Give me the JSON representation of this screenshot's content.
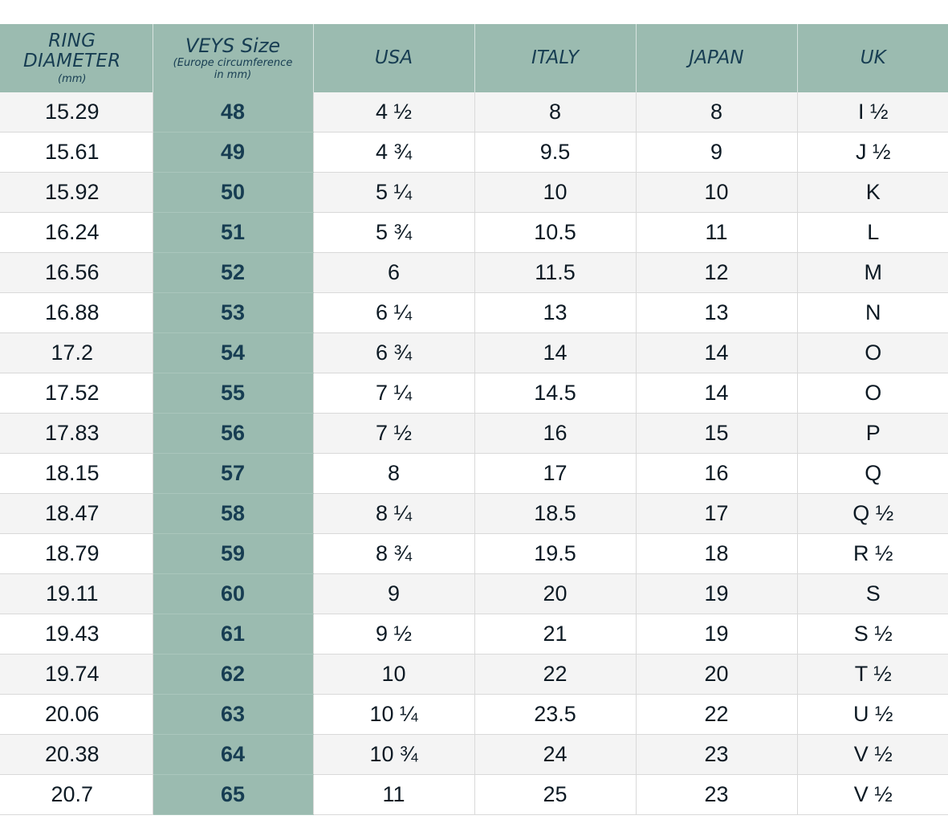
{
  "header": {
    "ring_diameter": {
      "line1": "RING",
      "line2": "DIAMETER",
      "unit": "(mm)"
    },
    "veys": {
      "title": "VEYS Size",
      "sub1": "(Europe circumference",
      "sub2": "in mm)"
    },
    "usa": "USA",
    "italy": "ITALY",
    "japan": "JAPAN",
    "uk": "UK"
  },
  "rows": [
    {
      "diameter": "15.29",
      "veys": "48",
      "usa": "4 ½",
      "italy": "8",
      "japan": "8",
      "uk": "I ½"
    },
    {
      "diameter": "15.61",
      "veys": "49",
      "usa": "4 ¾",
      "italy": "9.5",
      "japan": "9",
      "uk": "J ½"
    },
    {
      "diameter": "15.92",
      "veys": "50",
      "usa": "5 ¼",
      "italy": "10",
      "japan": "10",
      "uk": "K"
    },
    {
      "diameter": "16.24",
      "veys": "51",
      "usa": "5 ¾",
      "italy": "10.5",
      "japan": "11",
      "uk": "L"
    },
    {
      "diameter": "16.56",
      "veys": "52",
      "usa": "6",
      "italy": "11.5",
      "japan": "12",
      "uk": "M"
    },
    {
      "diameter": "16.88",
      "veys": "53",
      "usa": "6 ¼",
      "italy": "13",
      "japan": "13",
      "uk": "N"
    },
    {
      "diameter": "17.2",
      "veys": "54",
      "usa": "6 ¾",
      "italy": "14",
      "japan": "14",
      "uk": "O"
    },
    {
      "diameter": "17.52",
      "veys": "55",
      "usa": "7 ¼",
      "italy": "14.5",
      "japan": "14",
      "uk": "O"
    },
    {
      "diameter": "17.83",
      "veys": "56",
      "usa": "7 ½",
      "italy": "16",
      "japan": "15",
      "uk": "P"
    },
    {
      "diameter": "18.15",
      "veys": "57",
      "usa": "8",
      "italy": "17",
      "japan": "16",
      "uk": "Q"
    },
    {
      "diameter": "18.47",
      "veys": "58",
      "usa": "8 ¼",
      "italy": "18.5",
      "japan": "17",
      "uk": "Q ½"
    },
    {
      "diameter": "18.79",
      "veys": "59",
      "usa": "8 ¾",
      "italy": "19.5",
      "japan": "18",
      "uk": "R ½"
    },
    {
      "diameter": "19.11",
      "veys": "60",
      "usa": "9",
      "italy": "20",
      "japan": "19",
      "uk": "S"
    },
    {
      "diameter": "19.43",
      "veys": "61",
      "usa": "9 ½",
      "italy": "21",
      "japan": "19",
      "uk": "S ½"
    },
    {
      "diameter": "19.74",
      "veys": "62",
      "usa": "10",
      "italy": "22",
      "japan": "20",
      "uk": "T ½"
    },
    {
      "diameter": "20.06",
      "veys": "63",
      "usa": "10 ¼",
      "italy": "23.5",
      "japan": "22",
      "uk": "U ½"
    },
    {
      "diameter": "20.38",
      "veys": "64",
      "usa": "10 ¾",
      "italy": "24",
      "japan": "23",
      "uk": "V ½"
    },
    {
      "diameter": "20.7",
      "veys": "65",
      "usa": "11",
      "italy": "25",
      "japan": "23",
      "uk": "V ½"
    }
  ],
  "colors": {
    "header_bg": "#9bbbb0",
    "header_text": "#173d52",
    "row_alt": "#f4f4f4"
  }
}
